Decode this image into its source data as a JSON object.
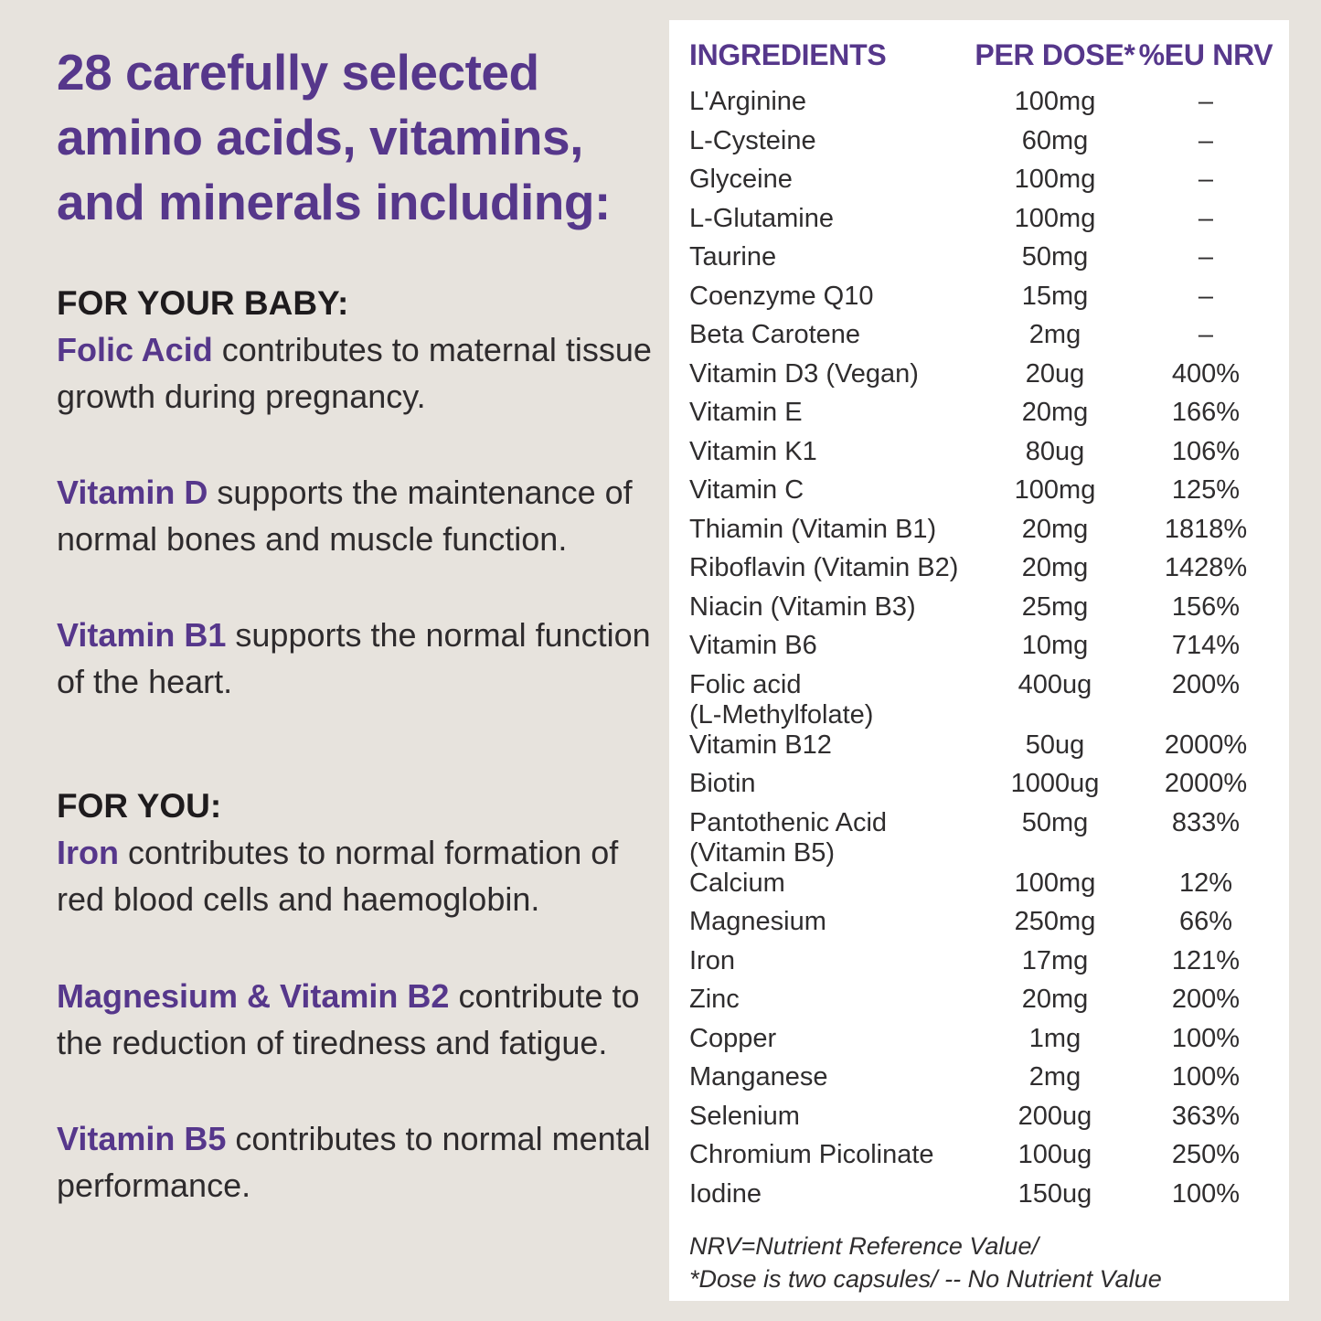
{
  "colors": {
    "background": "#E7E3DD",
    "panel": "#FFFFFF",
    "accent_purple": "#56378B",
    "body_text": "#2E2B2D"
  },
  "headline": {
    "lines": [
      "28 carefully selected",
      "amino acids, vitamins,",
      "and minerals including:"
    ]
  },
  "sections": [
    {
      "label": "FOR YOUR BABY:",
      "items": [
        {
          "highlight": "Folic Acid",
          "text": " contributes to maternal tissue growth during pregnancy."
        },
        {
          "highlight": "Vitamin D",
          "text": " supports the maintenance of normal bones and muscle function."
        },
        {
          "highlight": "Vitamin B1",
          "text": " supports the normal function of the heart."
        }
      ]
    },
    {
      "label": "FOR YOU:",
      "items": [
        {
          "highlight": "Iron",
          "text": " contributes to normal formation of red blood cells and haemoglobin."
        },
        {
          "highlight": "Magnesium & Vitamin B2",
          "text": " contribute to the reduction of tiredness and fatigue."
        },
        {
          "highlight": "Vitamin B5",
          "text": " contributes to normal mental performance."
        }
      ]
    }
  ],
  "table": {
    "headers": [
      "INGREDIENTS",
      "PER DOSE*",
      "%EU NRV"
    ],
    "rows": [
      {
        "name": "L'Arginine",
        "dose": "100mg",
        "nrv": "–"
      },
      {
        "name": "L-Cysteine",
        "dose": "60mg",
        "nrv": "–"
      },
      {
        "name": "Glyceine",
        "dose": "100mg",
        "nrv": "–"
      },
      {
        "name": "L-Glutamine",
        "dose": "100mg",
        "nrv": "–"
      },
      {
        "name": "Taurine",
        "dose": "50mg",
        "nrv": "–"
      },
      {
        "name": "Coenzyme Q10",
        "dose": "15mg",
        "nrv": "–"
      },
      {
        "name": "Beta Carotene",
        "dose": "2mg",
        "nrv": "–"
      },
      {
        "name": "Vitamin D3 (Vegan)",
        "dose": "20ug",
        "nrv": "400%"
      },
      {
        "name": "Vitamin E",
        "dose": "20mg",
        "nrv": "166%"
      },
      {
        "name": "Vitamin K1",
        "dose": "80ug",
        "nrv": "106%"
      },
      {
        "name": "Vitamin C",
        "dose": "100mg",
        "nrv": "125%"
      },
      {
        "name": "Thiamin (Vitamin B1)",
        "dose": "20mg",
        "nrv": "1818%"
      },
      {
        "name": "Riboflavin (Vitamin B2)",
        "dose": "20mg",
        "nrv": "1428%"
      },
      {
        "name": "Niacin (Vitamin B3)",
        "dose": "25mg",
        "nrv": "156%"
      },
      {
        "name": "Vitamin B6",
        "dose": "10mg",
        "nrv": "714%"
      },
      {
        "name": "Folic acid\n(L-Methylfolate)",
        "dose": "400ug",
        "nrv": "200%"
      },
      {
        "name": "Vitamin B12",
        "dose": "50ug",
        "nrv": "2000%"
      },
      {
        "name": "Biotin",
        "dose": "1000ug",
        "nrv": "2000%"
      },
      {
        "name": "Pantothenic Acid\n(Vitamin B5)",
        "dose": "50mg",
        "nrv": "833%"
      },
      {
        "name": "Calcium",
        "dose": "100mg",
        "nrv": "12%"
      },
      {
        "name": "Magnesium",
        "dose": "250mg",
        "nrv": "66%"
      },
      {
        "name": "Iron",
        "dose": "17mg",
        "nrv": "121%"
      },
      {
        "name": "Zinc",
        "dose": "20mg",
        "nrv": "200%"
      },
      {
        "name": "Copper",
        "dose": "1mg",
        "nrv": "100%"
      },
      {
        "name": "Manganese",
        "dose": "2mg",
        "nrv": "100%"
      },
      {
        "name": "Selenium",
        "dose": "200ug",
        "nrv": "363%"
      },
      {
        "name": "Chromium Picolinate",
        "dose": "100ug",
        "nrv": "250%"
      },
      {
        "name": "Iodine",
        "dose": "150ug",
        "nrv": "100%"
      }
    ],
    "footnotes": [
      "NRV=Nutrient Reference Value/",
      "*Dose is two capsules/ -- No Nutrient Value"
    ]
  }
}
